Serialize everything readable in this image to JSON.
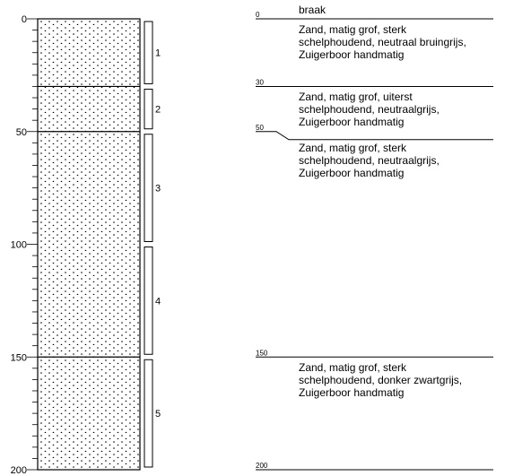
{
  "borehole": {
    "depth_axis": {
      "min": 0,
      "max": 200,
      "major_ticks": [
        0,
        50,
        100,
        150,
        200
      ],
      "minor_step": 5
    },
    "samples": [
      {
        "label": "1",
        "top": 0,
        "bottom": 30
      },
      {
        "label": "2",
        "top": 30,
        "bottom": 50
      },
      {
        "label": "3",
        "top": 50,
        "bottom": 100
      },
      {
        "label": "4",
        "top": 100,
        "bottom": 150
      },
      {
        "label": "5",
        "top": 150,
        "bottom": 200
      }
    ],
    "layer_boundaries": [
      30,
      50,
      150
    ],
    "fill_pattern": "sand-dots"
  },
  "description": {
    "boundaries": [
      {
        "depth": 0,
        "label": "0"
      },
      {
        "depth": 30,
        "label": "30"
      },
      {
        "depth": 50,
        "label": "50"
      },
      {
        "depth": 150,
        "label": "150"
      },
      {
        "depth": 200,
        "label": "200"
      }
    ],
    "texts": [
      {
        "depth": 0,
        "lines": [
          "braak"
        ]
      },
      {
        "depth": 0,
        "lines": [
          "Zand, matig grof, sterk",
          "schelphoudend, neutraal bruingrijs,",
          "Zuigerboor handmatig"
        ]
      },
      {
        "depth": 30,
        "lines": [
          "Zand, matig grof, uiterst",
          "schelphoudend,  neutraalgrijs,",
          "Zuigerboor handmatig"
        ]
      },
      {
        "depth": 50,
        "lines": [
          "Zand, matig grof, sterk",
          "schelphoudend,  neutraalgrijs,",
          "Zuigerboor handmatig"
        ]
      },
      {
        "depth": 150,
        "lines": [
          "Zand, matig grof, sterk",
          "schelphoudend, donker zwartgrijs,",
          "Zuigerboor handmatig"
        ]
      }
    ]
  }
}
